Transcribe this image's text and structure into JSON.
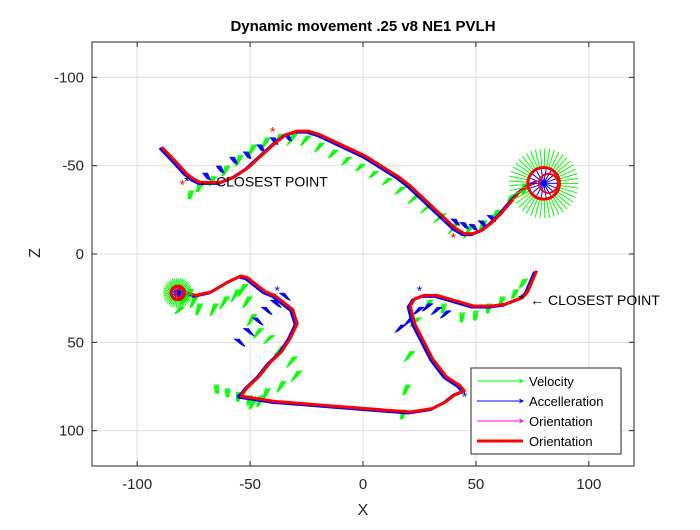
{
  "chart_data": {
    "type": "line",
    "title": "Dynamic movement .25 v8 NE1 PVLH",
    "xlabel": "X",
    "ylabel": "Z",
    "xlim": [
      -120,
      120
    ],
    "ylim": [
      -120,
      120
    ],
    "y_axis_reversed": true,
    "grid": true,
    "legend_placement": "bottom-right",
    "x_ticks": [
      -100,
      -50,
      0,
      50,
      100
    ],
    "y_ticks": [
      -100,
      -50,
      0,
      50,
      100
    ],
    "series": [
      {
        "name": "Velocity",
        "color": "#00ff00",
        "style": "quiver",
        "quivers": [
          {
            "x": [
              -76,
              -72,
              -66,
              -60,
              -54,
              -48,
              -42,
              -36,
              -30,
              -24,
              -18,
              -12,
              -6,
              0,
              6,
              12,
              18,
              24,
              30,
              36,
              42,
              48,
              54,
              60,
              66,
              72
            ],
            "y": [
              -36,
              -40,
              -44,
              -50,
              -56,
              -62,
              -66,
              -68,
              -68,
              -67,
              -63,
              -59,
              -55,
              -51,
              -47,
              -43,
              -38,
              -33,
              -28,
              -23,
              -18,
              -16,
              -19,
              -25,
              -33,
              -40
            ],
            "u": [
              -0.22,
              -0.3,
              -0.35,
              -0.4,
              -0.42,
              -0.45,
              -0.46,
              -0.5,
              -0.55,
              -0.6,
              -0.6,
              -0.62,
              -0.64,
              -0.66,
              -0.68,
              -0.7,
              -0.72,
              -0.74,
              -0.75,
              -0.72,
              -0.6,
              -0.5,
              -0.45,
              -0.5,
              -0.4,
              -0.2
            ],
            "v": [
              0.93,
              0.92,
              0.91,
              0.9,
              0.9,
              0.88,
              0.86,
              0.84,
              0.82,
              0.8,
              0.8,
              0.78,
              0.76,
              0.74,
              0.72,
              0.7,
              0.68,
              0.66,
              0.65,
              0.68,
              0.78,
              0.86,
              0.88,
              0.86,
              0.9,
              0.96
            ],
            "l": [
              9,
              9,
              10,
              11,
              12,
              12,
              12,
              13,
              13,
              12,
              11,
              10,
              10,
              9,
              9,
              9,
              10,
              11,
              12,
              13,
              14,
              14,
              13,
              12,
              12,
              11
            ]
          },
          {
            "x": [
              -80,
              -78,
              -76,
              -74,
              -72,
              -65,
              -60,
              -55,
              -52,
              -50,
              -48,
              -45,
              -40,
              -35,
              -30,
              -28,
              -35,
              -42,
              -45,
              -48,
              -50,
              -55,
              -60,
              -65
            ],
            "y": [
              30,
              24,
              20,
              24,
              28,
              28,
              24,
              20,
              17,
              24,
              34,
              42,
              46,
              52,
              58,
              66,
              72,
              76,
              80,
              82,
              80,
              78,
              76,
              74
            ],
            "u": [
              -0.7,
              -0.6,
              -0.5,
              -0.4,
              -0.3,
              -0.4,
              -0.5,
              -0.5,
              -0.5,
              -0.5,
              -0.5,
              -0.6,
              -0.7,
              -0.7,
              -0.6,
              -0.6,
              -0.5,
              -0.4,
              -0.3,
              -0.4,
              -0.2,
              -0.1,
              0,
              0.1
            ],
            "v": [
              0.7,
              0.8,
              0.86,
              0.9,
              0.95,
              0.9,
              0.86,
              0.86,
              0.86,
              0.86,
              0.86,
              0.8,
              0.71,
              0.71,
              0.8,
              0.8,
              0.86,
              0.9,
              0.95,
              0.9,
              0.97,
              0.99,
              1,
              0.99
            ],
            "l": [
              9,
              10,
              11,
              12,
              12,
              13,
              14,
              14,
              14,
              13,
              13,
              12,
              11,
              12,
              13,
              13,
              12,
              12,
              12,
              11,
              10,
              10,
              9,
              9
            ]
          },
          {
            "x": [
              18,
              20,
              22,
              25,
              30,
              36,
              44,
              50,
              56,
              62,
              68,
              72
            ],
            "y": [
              88,
              74,
              55,
              36,
              26,
              28,
              33,
              32,
              28,
              24,
              20,
              14
            ],
            "u": [
              -0.2,
              -0.4,
              -0.6,
              -0.7,
              -0.5,
              -0.2,
              -0.1,
              -0.1,
              -0.2,
              -0.3,
              -0.4,
              -0.5
            ],
            "v": [
              0.98,
              0.92,
              0.8,
              0.7,
              0.86,
              0.98,
              0.99,
              0.99,
              0.98,
              0.95,
              0.92,
              0.86
            ],
            "l": [
              10,
              11,
              12,
              12,
              11,
              10,
              10,
              10,
              10,
              10,
              10,
              10
            ]
          }
        ]
      },
      {
        "name": "Accelleration",
        "color": "#0000ff",
        "style": "quiver",
        "quivers": [
          {
            "x": [
              -70,
              -64,
              -58,
              -52,
              -46,
              -40,
              -34,
              40,
              44,
              48,
              52,
              56,
              -56,
              -52,
              -48,
              -44,
              -40,
              -36,
              18,
              22,
              26,
              30,
              34,
              38
            ],
            "y": [
              -46,
              -50,
              -55,
              -58,
              -62,
              -66,
              -68,
              -20,
              -18,
              -17,
              -19,
              -22,
              48,
              42,
              36,
              30,
              26,
              22,
              40,
              36,
              30,
              28,
              30,
              32
            ],
            "u": [
              0.5,
              0.5,
              0.5,
              0.5,
              0.5,
              0.5,
              0.5,
              0.6,
              0.6,
              0.6,
              0.6,
              0.6,
              0.7,
              0.7,
              0.7,
              0.7,
              0.7,
              0.7,
              -0.7,
              -0.7,
              -0.7,
              -0.7,
              -0.7,
              -0.7
            ],
            "v": [
              0.86,
              0.86,
              0.86,
              0.86,
              0.86,
              0.86,
              0.86,
              0.8,
              0.8,
              0.8,
              0.8,
              0.8,
              0.7,
              0.7,
              0.7,
              0.7,
              0.7,
              0.7,
              0.7,
              0.7,
              0.7,
              0.7,
              0.7,
              0.7
            ],
            "l": [
              8,
              8,
              8,
              8,
              8,
              8,
              8,
              8,
              8,
              8,
              8,
              8,
              10,
              10,
              10,
              10,
              10,
              10,
              10,
              10,
              10,
              10,
              10,
              10
            ]
          }
        ]
      },
      {
        "name": "Orientation",
        "color": "#ff00ff",
        "style": "quiver",
        "quivers": []
      },
      {
        "name": "Orientation",
        "color": "#ff0000",
        "style": "line",
        "x": [
          -90,
          -84,
          -79,
          -76,
          -73,
          -70,
          -64,
          -58,
          -52,
          -46,
          -40,
          -35,
          -30,
          -25,
          -20,
          -15,
          -10,
          -5,
          0,
          5,
          10,
          15,
          20,
          25,
          30,
          35,
          40,
          44,
          48,
          52,
          56,
          60,
          64,
          68,
          72,
          75,
          76
        ],
        "y": [
          -60,
          -52,
          -45,
          -42,
          -40,
          -40,
          -40,
          -43,
          -48,
          -55,
          -62,
          -67,
          -69,
          -69,
          -67,
          -64,
          -61,
          -58,
          -55,
          -51,
          -47,
          -43,
          -38,
          -32,
          -26,
          -20,
          -14,
          -11,
          -11,
          -13,
          -17,
          -22,
          -28,
          -34,
          -38,
          -40,
          -40
        ]
      },
      {
        "name": "Orientation",
        "color": "#ff0000",
        "style": "line",
        "x": [
          -80,
          -75,
          -68,
          -60,
          -55,
          -52,
          -48,
          -44,
          -40,
          -36,
          -32,
          -30,
          -33,
          -37,
          -42,
          -47,
          -52,
          -55,
          -50,
          -40,
          -30,
          -20,
          -10,
          0,
          10,
          20,
          30,
          36,
          40,
          44,
          42,
          36,
          30,
          26,
          22,
          20,
          22,
          26,
          32,
          40,
          48,
          56,
          62,
          66,
          70,
          72,
          74,
          76
        ],
        "y": [
          22,
          24,
          22,
          16,
          13,
          14,
          18,
          22,
          24,
          28,
          32,
          40,
          48,
          56,
          62,
          70,
          76,
          81,
          82,
          84,
          85,
          86,
          87,
          88,
          89,
          90,
          88,
          84,
          80,
          78,
          75,
          70,
          60,
          50,
          40,
          30,
          26,
          24,
          24,
          27,
          30,
          30,
          29,
          27,
          25,
          22,
          16,
          10
        ]
      },
      {
        "name": "",
        "color": "#ff0000",
        "style": "loops",
        "loops": [
          {
            "cx": 80,
            "cy": -40,
            "r": 7
          },
          {
            "cx": -82,
            "cy": 22,
            "r": 3
          }
        ]
      }
    ],
    "markers": [
      {
        "x": -80,
        "y": -40,
        "symbol": "*",
        "color": "#ff0000"
      },
      {
        "x": -78,
        "y": -42,
        "symbol": "*",
        "color": "#000000"
      },
      {
        "x": -40,
        "y": -70,
        "symbol": "*",
        "color": "#ff0000"
      },
      {
        "x": 40,
        "y": -10,
        "symbol": "*",
        "color": "#ff0000"
      },
      {
        "x": -38,
        "y": 20,
        "symbol": "*",
        "color": "#0000ff"
      },
      {
        "x": 25,
        "y": 20,
        "symbol": "*",
        "color": "#0000ff"
      },
      {
        "x": 45,
        "y": 80,
        "symbol": "*",
        "color": "#0000ff"
      },
      {
        "x": -55,
        "y": 81,
        "symbol": "*",
        "color": "#0000ff"
      },
      {
        "x": 70,
        "y": 25,
        "symbol": "*",
        "color": "#000000"
      }
    ],
    "annotations": [
      {
        "text": "← CLOSEST POINT",
        "x": -73,
        "y": -41
      },
      {
        "text": "← CLOSEST POINT",
        "x": 74,
        "y": 26
      }
    ],
    "legend": [
      {
        "label": "Velocity",
        "color": "#00ff00",
        "kind": "arrow"
      },
      {
        "label": "Accelleration",
        "color": "#0000ff",
        "kind": "arrow"
      },
      {
        "label": "Orientation",
        "color": "#ff00ff",
        "kind": "arrow"
      },
      {
        "label": "Orientation",
        "color": "#ff0000",
        "kind": "line"
      }
    ]
  }
}
